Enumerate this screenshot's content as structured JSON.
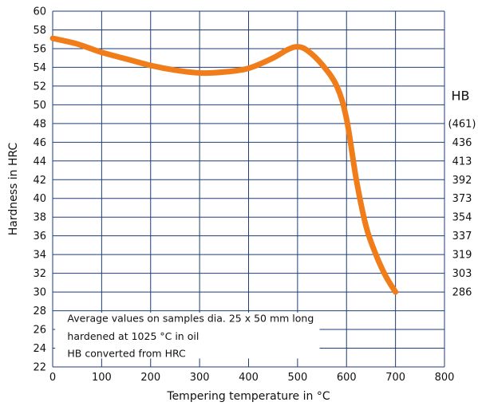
{
  "chart_data": {
    "type": "line",
    "title": "",
    "xlabel": "Tempering temperature in °C",
    "ylabel": "Hardness in HRC",
    "xlim": [
      0,
      800
    ],
    "ylim": [
      22,
      60
    ],
    "x_ticks": [
      0,
      100,
      200,
      300,
      400,
      500,
      600,
      700,
      800
    ],
    "y_ticks": [
      22,
      24,
      26,
      28,
      30,
      32,
      34,
      36,
      38,
      40,
      42,
      44,
      46,
      48,
      50,
      52,
      54,
      56,
      58,
      60
    ],
    "grid": true,
    "line_color": "#f07d1a",
    "grid_color": "#1f3b7a",
    "series": [
      {
        "x": [
          0,
          50,
          100,
          150,
          200,
          250,
          300,
          350,
          400,
          450,
          480,
          500,
          520,
          550,
          580,
          600,
          620,
          640,
          660,
          680,
          700
        ],
        "y": [
          57.1,
          56.5,
          55.6,
          54.9,
          54.2,
          53.7,
          53.4,
          53.5,
          53.9,
          55.0,
          55.9,
          56.2,
          55.8,
          54.3,
          52.0,
          48.5,
          42.0,
          37.0,
          34.0,
          31.7,
          30.0
        ]
      }
    ],
    "secondary_axis": {
      "label": "HB",
      "ticks": [
        {
          "hrc": 48,
          "label": "(461)"
        },
        {
          "hrc": 46,
          "label": "436"
        },
        {
          "hrc": 44,
          "label": "413"
        },
        {
          "hrc": 42,
          "label": "392"
        },
        {
          "hrc": 40,
          "label": "373"
        },
        {
          "hrc": 38,
          "label": "354"
        },
        {
          "hrc": 36,
          "label": "337"
        },
        {
          "hrc": 34,
          "label": "319"
        },
        {
          "hrc": 32,
          "label": "303"
        },
        {
          "hrc": 30,
          "label": "286"
        }
      ]
    },
    "annotation": [
      "Average values on samples dia. 25 x 50 mm long",
      "hardened at 1025 °C in oil",
      "HB converted from HRC"
    ]
  }
}
